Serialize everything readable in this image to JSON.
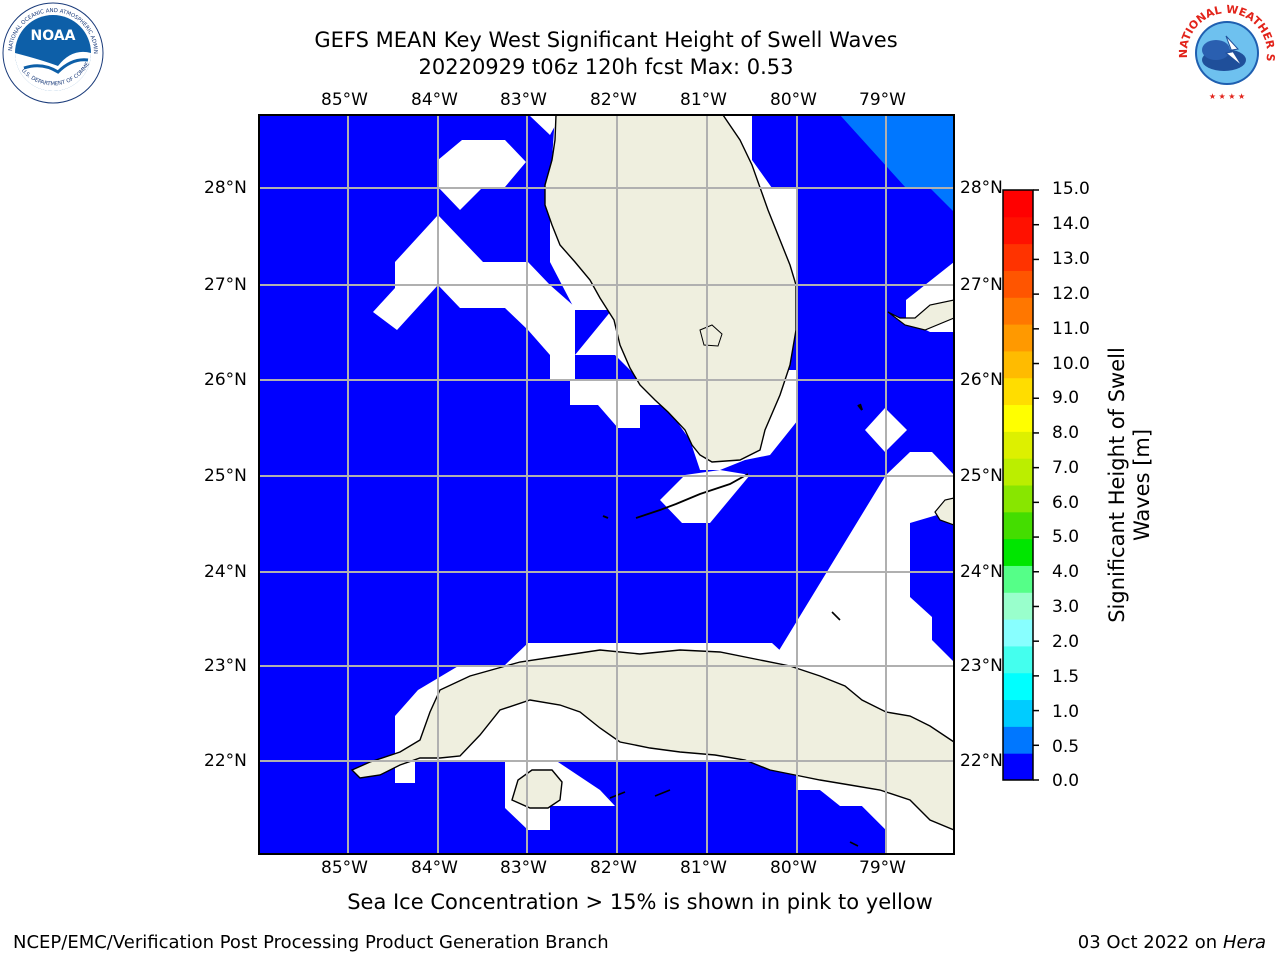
{
  "header": {
    "line1": "GEFS MEAN Key West Significant Height of Swell Waves",
    "line2": "20220929 t06z 120h fcst   Max: 0.53"
  },
  "logos": {
    "noaa": {
      "center_text": "NOAA",
      "ring_text": "NATIONAL OCEANIC AND ATMOSPHERIC ADMINISTRATION",
      "bottom_text": "U.S. DEPARTMENT OF COMMERCE",
      "color": "#0d5fa8"
    },
    "nws": {
      "ring_text": "NATIONAL WEATHER SERVICE",
      "color": "#e2231a"
    }
  },
  "map": {
    "lon_labels": [
      "85°W",
      "84°W",
      "83°W",
      "82°W",
      "81°W",
      "80°W",
      "79°W"
    ],
    "lat_labels": [
      "28°N",
      "27°N",
      "26°N",
      "25°N",
      "24°N",
      "23°N",
      "22°N"
    ],
    "ocean_color": "#0000ff",
    "land_color": "#efefdf",
    "grid_color": "#b0b0b0"
  },
  "colorbar": {
    "title_line1": "Significant Height of Swell",
    "title_line2": "Waves [m]",
    "tick_labels": [
      "0.0",
      "0.5",
      "1.0",
      "1.5",
      "2.0",
      "3.0",
      "4.0",
      "5.0",
      "6.0",
      "7.0",
      "8.0",
      "9.0",
      "10.0",
      "11.0",
      "12.0",
      "13.0",
      "14.0",
      "15.0"
    ],
    "colors": [
      "#0000ff",
      "#0077ff",
      "#00ccff",
      "#00ffff",
      "#44ffee",
      "#88ffff",
      "#99ffcc",
      "#55ff88",
      "#00e600",
      "#44dd00",
      "#88e600",
      "#bbee00",
      "#ddf000",
      "#ffff00",
      "#ffdd00",
      "#ffbb00",
      "#ff9900",
      "#ff7700",
      "#ff5500",
      "#ff3300",
      "#ff1100",
      "#ff0000"
    ]
  },
  "subtitle": "Sea Ice Concentration > 15% is shown in pink to yellow",
  "footer": {
    "left": "NCEP/EMC/Verification Post Processing Product Generation Branch",
    "date": "03 Oct 2022 on ",
    "host": "Hera"
  }
}
